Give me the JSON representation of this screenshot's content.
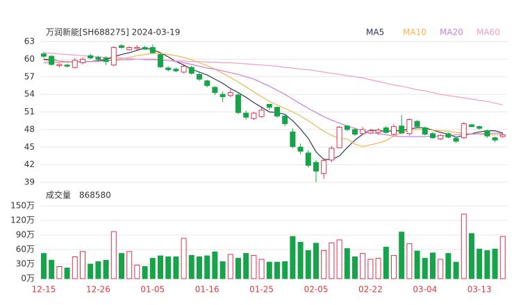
{
  "chart_data": [
    {
      "type": "candlestick",
      "title": "万润新能[SH688275] 2024-03-19",
      "up_color": "#e0304b",
      "down_color": "#16a34a",
      "open": [
        60.9,
        60.5,
        58.9,
        59.0,
        58.6,
        59.4,
        60.6,
        60.3,
        60.2,
        59.0,
        62.3,
        61.6,
        61.8,
        62.0,
        62.0,
        60.8,
        58.5,
        58.3,
        57.8,
        58.6,
        57.4,
        56.3,
        55.2,
        54.0,
        53.8,
        53.9,
        50.8,
        49.9,
        50.2,
        52.3,
        51.8,
        50.3,
        47.6,
        45.0,
        44.0,
        42.4,
        40.5,
        42.8,
        44.9,
        48.6,
        48.0,
        47.3,
        47.4,
        47.5,
        48.3,
        47.2,
        48.6,
        47.3,
        49.4,
        48.3,
        47.3,
        46.4,
        47.3,
        46.5,
        46.6,
        48.8,
        48.5,
        47.8,
        46.6,
        46.8
      ],
      "high": [
        61.3,
        60.7,
        59.3,
        59.2,
        60.2,
        60.3,
        60.9,
        60.6,
        60.5,
        62.2,
        62.6,
        62.2,
        62.4,
        62.3,
        62.5,
        61.0,
        58.8,
        58.6,
        59.0,
        58.9,
        57.8,
        56.5,
        55.4,
        54.5,
        54.8,
        54.2,
        51.2,
        51.0,
        51.7,
        52.4,
        51.9,
        50.6,
        48.2,
        45.6,
        44.5,
        42.8,
        43.1,
        45.2,
        48.6,
        48.8,
        48.3,
        48.4,
        48.1,
        48.2,
        48.6,
        48.9,
        50.5,
        49.9,
        49.6,
        48.5,
        47.6,
        47.2,
        47.5,
        46.8,
        49.3,
        49.0,
        48.7,
        48.0,
        46.8,
        47.3
      ],
      "low": [
        60.2,
        58.9,
        58.6,
        58.6,
        58.4,
        59.1,
        60.0,
        59.6,
        59.0,
        58.8,
        61.8,
        61.5,
        61.6,
        61.6,
        61.0,
        58.5,
        57.9,
        57.8,
        57.6,
        57.3,
        56.3,
        55.2,
        53.9,
        52.7,
        53.5,
        50.6,
        49.7,
        49.6,
        50.0,
        51.3,
        50.0,
        48.6,
        44.8,
        43.8,
        41.5,
        39.0,
        39.6,
        42.4,
        44.8,
        47.7,
        46.9,
        47.1,
        47.2,
        47.1,
        47.3,
        47.0,
        47.2,
        47.0,
        48.2,
        47.0,
        46.4,
        46.2,
        46.5,
        45.7,
        46.4,
        48.4,
        48.0,
        46.6,
        45.8,
        46.6
      ],
      "close": [
        60.5,
        59.1,
        59.1,
        58.8,
        59.8,
        60.0,
        60.2,
        60.0,
        59.6,
        62.0,
        62.0,
        62.0,
        62.0,
        61.7,
        61.1,
        58.7,
        58.2,
        58.0,
        58.8,
        57.6,
        56.6,
        55.5,
        54.3,
        53.6,
        54.3,
        50.9,
        50.1,
        50.8,
        51.3,
        51.8,
        50.3,
        49.0,
        45.1,
        44.3,
        41.9,
        40.9,
        42.7,
        44.8,
        48.4,
        48.0,
        47.2,
        48.0,
        47.8,
        47.9,
        47.5,
        48.5,
        47.4,
        49.7,
        48.5,
        47.2,
        46.6,
        47.0,
        46.7,
        46.0,
        49.0,
        48.5,
        48.2,
        46.9,
        46.2,
        47.1
      ],
      "series": [
        {
          "name": "MA5",
          "color": "#2b3450",
          "values": [
            60.0,
            59.9,
            59.7,
            59.6,
            59.5,
            59.6,
            59.6,
            59.8,
            59.9,
            60.4,
            60.8,
            61.1,
            61.5,
            61.9,
            61.6,
            61.1,
            60.4,
            59.6,
            59.0,
            58.3,
            57.8,
            57.3,
            56.6,
            55.9,
            55.0,
            54.3,
            53.5,
            52.6,
            51.8,
            51.0,
            50.9,
            50.6,
            49.5,
            48.1,
            46.5,
            44.2,
            42.9,
            42.9,
            43.5,
            44.9,
            46.2,
            47.2,
            47.9,
            47.8,
            47.7,
            47.8,
            47.8,
            48.1,
            48.3,
            48.3,
            47.9,
            47.5,
            47.2,
            46.7,
            47.0,
            47.3,
            47.6,
            47.8,
            47.8,
            47.4
          ]
        },
        {
          "name": "MA10",
          "color": "#f2b44c",
          "values": [
            59.8,
            59.8,
            59.7,
            59.6,
            59.6,
            59.6,
            59.6,
            59.6,
            59.7,
            59.9,
            60.1,
            60.3,
            60.6,
            60.8,
            61.0,
            61.0,
            60.8,
            60.6,
            60.3,
            59.9,
            59.4,
            58.9,
            58.3,
            57.6,
            56.9,
            56.1,
            55.3,
            54.4,
            53.6,
            52.8,
            52.2,
            51.6,
            51.0,
            50.3,
            49.5,
            48.6,
            47.7,
            47.0,
            46.5,
            46.4,
            45.5,
            45.1,
            45.4,
            45.7,
            46.1,
            46.9,
            47.4,
            47.9,
            48.0,
            48.0,
            47.9,
            47.8,
            47.7,
            47.5,
            47.4,
            47.3,
            47.2,
            47.1,
            47.1,
            47.1
          ]
        },
        {
          "name": "MA20",
          "color": "#c47fe0",
          "values": [
            59.4,
            59.4,
            59.5,
            59.5,
            59.5,
            59.6,
            59.6,
            59.7,
            59.7,
            59.8,
            59.9,
            59.9,
            60.0,
            60.0,
            60.0,
            59.9,
            59.8,
            59.6,
            59.4,
            59.1,
            58.8,
            58.5,
            58.3,
            58.0,
            57.7,
            57.4,
            57.0,
            56.6,
            56.0,
            55.4,
            54.7,
            54.0,
            53.2,
            52.4,
            51.6,
            50.9,
            50.2,
            49.6,
            49.1,
            48.6,
            48.2,
            47.8,
            47.5,
            47.3,
            47.1,
            46.9,
            46.8,
            46.8,
            46.8,
            46.8,
            46.9,
            46.9,
            47.0,
            47.1,
            47.2,
            47.2,
            47.3,
            47.3,
            47.4,
            47.3
          ]
        },
        {
          "name": "MA60",
          "color": "#f29ac4",
          "values": [
            61.1,
            61.0,
            60.9,
            60.8,
            60.7,
            60.6,
            60.5,
            60.4,
            60.3,
            60.3,
            60.2,
            60.1,
            60.0,
            59.9,
            59.9,
            59.8,
            59.8,
            59.7,
            59.7,
            59.6,
            59.6,
            59.5,
            59.5,
            59.4,
            59.4,
            59.3,
            59.2,
            59.1,
            59.0,
            58.9,
            58.8,
            58.6,
            58.5,
            58.3,
            58.2,
            58.0,
            57.8,
            57.6,
            57.4,
            57.2,
            57.0,
            56.8,
            56.5,
            56.2,
            55.9,
            55.6,
            55.4,
            55.1,
            54.8,
            54.6,
            54.3,
            54.0,
            53.8,
            53.6,
            53.4,
            53.2,
            53.0,
            52.8,
            52.5,
            52.2
          ]
        }
      ],
      "ylim": [
        39,
        63
      ],
      "yticks": [
        39,
        42,
        45,
        48,
        51,
        54,
        57,
        60,
        63
      ],
      "grid": true
    },
    {
      "type": "bar",
      "title": "成交量",
      "latest": 868580,
      "categories": [
        "12-15",
        null,
        null,
        null,
        null,
        null,
        null,
        "12-26",
        null,
        null,
        null,
        null,
        null,
        null,
        "01-05",
        null,
        null,
        null,
        null,
        null,
        null,
        "01-16",
        null,
        null,
        null,
        null,
        null,
        null,
        "01-25",
        null,
        null,
        null,
        null,
        null,
        null,
        "02-05",
        null,
        null,
        null,
        null,
        null,
        null,
        "02-22",
        null,
        null,
        null,
        null,
        null,
        null,
        "03-04",
        null,
        null,
        null,
        null,
        null,
        null,
        "03-13",
        null,
        null,
        null
      ],
      "values": [
        52,
        38,
        25,
        22,
        45,
        56,
        30,
        35,
        38,
        97,
        52,
        56,
        28,
        25,
        42,
        47,
        45,
        45,
        83,
        48,
        45,
        47,
        55,
        35,
        50,
        42,
        52,
        48,
        40,
        34,
        34,
        35,
        87,
        75,
        58,
        73,
        58,
        74,
        80,
        62,
        45,
        52,
        40,
        42,
        65,
        48,
        96,
        72,
        57,
        42,
        53,
        40,
        52,
        34,
        133,
        93,
        61,
        58,
        61,
        87
      ],
      "ylim": [
        0,
        150
      ],
      "yticks": [
        {
          "value": 0,
          "label": "0万"
        },
        {
          "value": 30,
          "label": "30万"
        },
        {
          "value": 60,
          "label": "60万"
        },
        {
          "value": 90,
          "label": "90万"
        },
        {
          "value": 120,
          "label": "120万"
        },
        {
          "value": 150,
          "label": "150万"
        }
      ],
      "tick_color": "#d9363e",
      "grid": true
    }
  ]
}
